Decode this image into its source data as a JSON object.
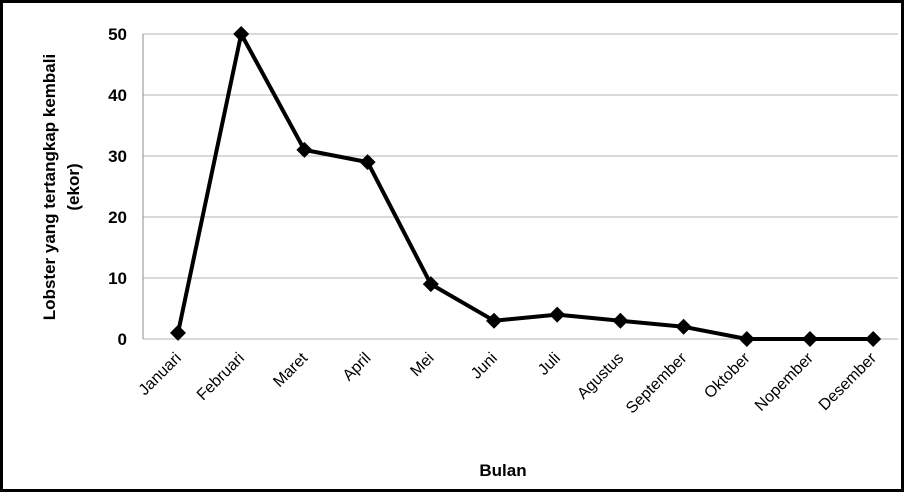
{
  "chart_data": {
    "type": "line",
    "title": "",
    "xlabel": "Bulan",
    "ylabel_lines": [
      "Lobster yang tertangkap kembali",
      "(ekor)"
    ],
    "categories": [
      "Januari",
      "Februari",
      "Maret",
      "April",
      "Mei",
      "Juni",
      "Juli",
      "Agustus",
      "September",
      "Oktober",
      "Nopember",
      "Desember"
    ],
    "series": [
      {
        "values": [
          1,
          50,
          31,
          29,
          9,
          3,
          4,
          3,
          2,
          0,
          0,
          0
        ]
      }
    ],
    "ylim": [
      0,
      50
    ],
    "yticks": [
      "0",
      "10",
      "20",
      "30",
      "40",
      "50"
    ],
    "grid": true,
    "marker": "diamond",
    "colors": {
      "line": "#000000",
      "grid": "#b3b3b3",
      "frame": "#000000"
    }
  }
}
